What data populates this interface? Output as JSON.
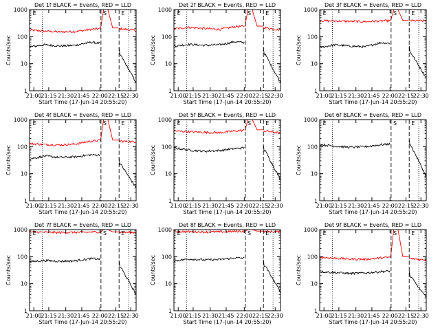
{
  "chart_data": [
    {
      "type": "line",
      "title": "Det 1f BLACK = Events, RED = LLD",
      "xlabel": "Start Time (17-Jun-14 20:55:20)",
      "ylabel": "Counts/sec",
      "x_ticks": [
        "21:00",
        "21:15",
        "21:30",
        "21:45",
        "22:00",
        "22:15",
        "22:30"
      ],
      "y_ticks": [
        "1",
        "10",
        "100",
        "1000"
      ],
      "ylim": [
        1,
        1000
      ],
      "yscale": "log",
      "markers": [
        "E",
        "S",
        "E"
      ],
      "series": [
        {
          "color": "#ff0000",
          "values": [
            175,
            160,
            150,
            155,
            185,
            210,
            195,
            170
          ]
        },
        {
          "color": "#000000",
          "values": [
            42,
            50,
            45,
            48,
            62,
            55,
            20,
            2
          ]
        }
      ]
    },
    {
      "type": "line",
      "title": "Det 2f BLACK = Events, RED = LLD",
      "xlabel": "Start Time (17-Jun-14 20:55:20)",
      "ylabel": "Counts/sec",
      "x_ticks": [
        "21:00",
        "21:15",
        "21:30",
        "21:45",
        "22:00",
        "22:15",
        "22:30"
      ],
      "y_ticks": [
        "1",
        "10",
        "100",
        "1000"
      ],
      "ylim": [
        1,
        1000
      ],
      "yscale": "log",
      "markers": [
        "E",
        "S",
        "E"
      ],
      "series": [
        {
          "color": "#ff0000",
          "values": [
            195,
            220,
            200,
            185,
            235,
            245,
            215,
            175
          ]
        },
        {
          "color": "#000000",
          "values": [
            45,
            52,
            48,
            50,
            65,
            58,
            22,
            2
          ]
        }
      ]
    },
    {
      "type": "line",
      "title": "Det 3f BLACK = Events, RED = LLD",
      "xlabel": "Start Time (17-Jun-14 20:55:20)",
      "ylabel": "Counts/sec",
      "x_ticks": [
        "21:00",
        "21:15",
        "21:30",
        "21:45",
        "22:00",
        "22:15",
        "22:30"
      ],
      "y_ticks": [
        "1",
        "10",
        "100",
        "1000"
      ],
      "ylim": [
        1,
        1000
      ],
      "yscale": "log",
      "markers": [
        "E",
        "S",
        "E"
      ],
      "series": [
        {
          "color": "#ff0000",
          "values": [
            390,
            380,
            370,
            360,
            380,
            400,
            390,
            380
          ]
        },
        {
          "color": "#000000",
          "values": [
            40,
            50,
            45,
            42,
            60,
            55,
            25,
            3
          ]
        }
      ]
    },
    {
      "type": "line",
      "title": "Det 4f BLACK = Events, RED = LLD",
      "xlabel": "Start Time (17-Jun-14 20:55:20)",
      "ylabel": "Counts/sec",
      "x_ticks": [
        "21:00",
        "21:15",
        "21:30",
        "21:45",
        "22:00",
        "22:15",
        "22:30"
      ],
      "y_ticks": [
        "1",
        "10",
        "100",
        "1000"
      ],
      "ylim": [
        1,
        1000
      ],
      "yscale": "log",
      "markers": [
        "E",
        "S",
        "E"
      ],
      "series": [
        {
          "color": "#ff0000",
          "values": [
            130,
            120,
            115,
            125,
            160,
            175,
            160,
            150
          ]
        },
        {
          "color": "#000000",
          "values": [
            35,
            45,
            40,
            42,
            50,
            48,
            22,
            3
          ]
        }
      ]
    },
    {
      "type": "line",
      "title": "Det 5f BLACK = Events, RED = LLD",
      "xlabel": "Start Time (17-Jun-14 20:55:20)",
      "ylabel": "Counts/sec",
      "x_ticks": [
        "21:00",
        "21:15",
        "21:30",
        "21:45",
        "22:00",
        "22:15",
        "22:30"
      ],
      "y_ticks": [
        "1",
        "10",
        "100",
        "1000"
      ],
      "ylim": [
        1,
        1000
      ],
      "yscale": "log",
      "markers": [
        "E",
        "S",
        "E"
      ],
      "series": [
        {
          "color": "#ff0000",
          "values": [
            380,
            360,
            340,
            330,
            380,
            420,
            380,
            320
          ]
        },
        {
          "color": "#000000",
          "values": [
            90,
            75,
            68,
            72,
            85,
            95,
            70,
            6
          ]
        }
      ]
    },
    {
      "type": "line",
      "title": "Det 6f BLACK = Events, RED = LLD",
      "xlabel": "Start Time (17-Jun-14 20:55:20)",
      "ylabel": "Counts/sec",
      "x_ticks": [
        "21:00",
        "21:15",
        "21:30",
        "21:45",
        "22:00",
        "22:15",
        "22:30"
      ],
      "y_ticks": [
        "1",
        "10",
        "100",
        "1000"
      ],
      "ylim": [
        1,
        1000
      ],
      "yscale": "log",
      "markers": [
        "E",
        "S",
        "E"
      ],
      "series": [
        {
          "color": "#000000",
          "values": [
            120,
            105,
            95,
            100,
            118,
            130,
            110,
            8
          ]
        }
      ]
    },
    {
      "type": "line",
      "title": "Det 7f BLACK = Events, RED = LLD",
      "xlabel": "Start Time (17-Jun-14 20:55:20)",
      "ylabel": "Counts/sec",
      "x_ticks": [
        "21:00",
        "21:15",
        "21:30",
        "21:45",
        "22:00",
        "22:15",
        "22:30"
      ],
      "y_ticks": [
        "1",
        "10",
        "100",
        "1000"
      ],
      "ylim": [
        1,
        1000
      ],
      "yscale": "log",
      "markers": [
        "E",
        "S",
        "E"
      ],
      "series": [
        {
          "color": "#ff0000",
          "values": [
            820,
            800,
            780,
            790,
            810,
            830,
            800,
            780
          ]
        },
        {
          "color": "#000000",
          "values": [
            65,
            72,
            68,
            70,
            85,
            80,
            40,
            4
          ]
        }
      ]
    },
    {
      "type": "line",
      "title": "Det 8f BLACK = Events, RED = LLD",
      "xlabel": "Start Time (17-Jun-14 20:55:20)",
      "ylabel": "Counts/sec",
      "x_ticks": [
        "21:00",
        "21:15",
        "21:30",
        "21:45",
        "22:00",
        "22:15",
        "22:30"
      ],
      "y_ticks": [
        "1",
        "10",
        "100",
        "1000"
      ],
      "ylim": [
        1,
        1000
      ],
      "yscale": "log",
      "markers": [
        "E",
        "S",
        "E"
      ],
      "series": [
        {
          "color": "#ff0000",
          "values": [
            850,
            840,
            820,
            830,
            860,
            880,
            850,
            830
          ]
        },
        {
          "color": "#000000",
          "values": [
            70,
            82,
            76,
            78,
            90,
            88,
            45,
            5
          ]
        }
      ]
    },
    {
      "type": "line",
      "title": "Det 9f BLACK = Events, RED = LLD",
      "xlabel": "Start Time (17-Jun-14 20:55:20)",
      "ylabel": "Counts/sec",
      "x_ticks": [
        "21:00",
        "21:15",
        "21:30",
        "21:45",
        "22:00",
        "22:15",
        "22:30"
      ],
      "y_ticks": [
        "1",
        "10",
        "100",
        "1000"
      ],
      "ylim": [
        1,
        1000
      ],
      "yscale": "log",
      "markers": [
        "E",
        "S",
        "E"
      ],
      "series": [
        {
          "color": "#ff0000",
          "values": [
            95,
            88,
            82,
            80,
            90,
            100,
            85,
            75
          ]
        },
        {
          "color": "#000000",
          "values": [
            28,
            26,
            24,
            25,
            28,
            30,
            18,
            3
          ]
        }
      ]
    }
  ]
}
